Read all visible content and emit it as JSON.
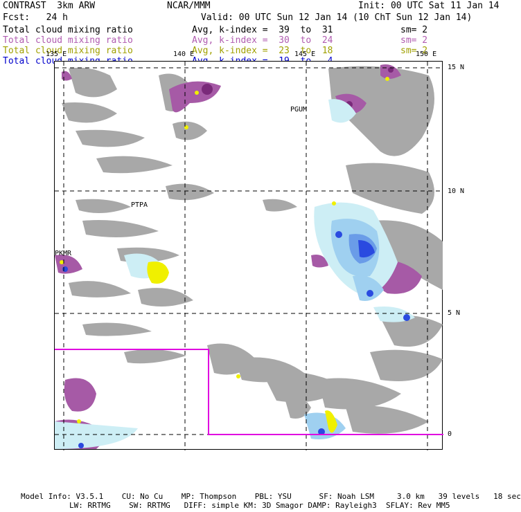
{
  "header": {
    "left_title": "CONTRAST  3km ARW",
    "center_title": "NCAR/MMM",
    "init": "Init: 00 UTC Sat 11 Jan 14",
    "fcst": "Fcst:   24 h",
    "valid": "Valid: 00 UTC Sun 12 Jan 14 (10 ChT Sun 12 Jan 14)"
  },
  "legend": [
    {
      "field": "Total cloud mixing ratio",
      "stat": "Avg, k-index =  39  to  31",
      "sm": "sm= 2",
      "color": "#000000"
    },
    {
      "field": "Total cloud mixing ratio",
      "stat": "Avg, k-index =  30  to  24",
      "sm": "sm= 2",
      "color": "#b05cb0"
    },
    {
      "field": "Total cloud mixing ratio",
      "stat": "Avg, k-index =  23  to  18",
      "sm": "sm= 2",
      "color": "#a0a000"
    },
    {
      "field": "Total cloud mixing ratio",
      "stat": "Avg, k-index =  19  to   4",
      "sm": "",
      "color": "#0000cc"
    }
  ],
  "map": {
    "lon_labels": [
      "135 E",
      "140 E",
      "145 E",
      "150 E"
    ],
    "lat_labels": [
      "15 N",
      "10 N",
      "5 N",
      "0"
    ],
    "place_labels": [
      "PGUM",
      "PTPA",
      "PKMR"
    ],
    "domain_box_color": "#e000e0",
    "colors": {
      "cloud_gray": "#a8a8a8",
      "purple": "#a65aa6",
      "dark_purple": "#7a2a7a",
      "light_cyan": "#cdeef5",
      "light_blue": "#9fd0f0",
      "mid_blue": "#6a9ce8",
      "deep_blue": "#2a4ae0",
      "yellow": "#f0f000"
    }
  },
  "footer": {
    "line1": "Model Info: V3.5.1    CU: No Cu    MP: Thompson    PBL: YSU      SF: Noah LSM     3.0 km   39 levels   18 sec",
    "line2": "LW: RRTMG    SW: RRTMG   DIFF: simple KM: 3D Smagor DAMP: Rayleigh3  SFLAY: Rev MM5"
  }
}
